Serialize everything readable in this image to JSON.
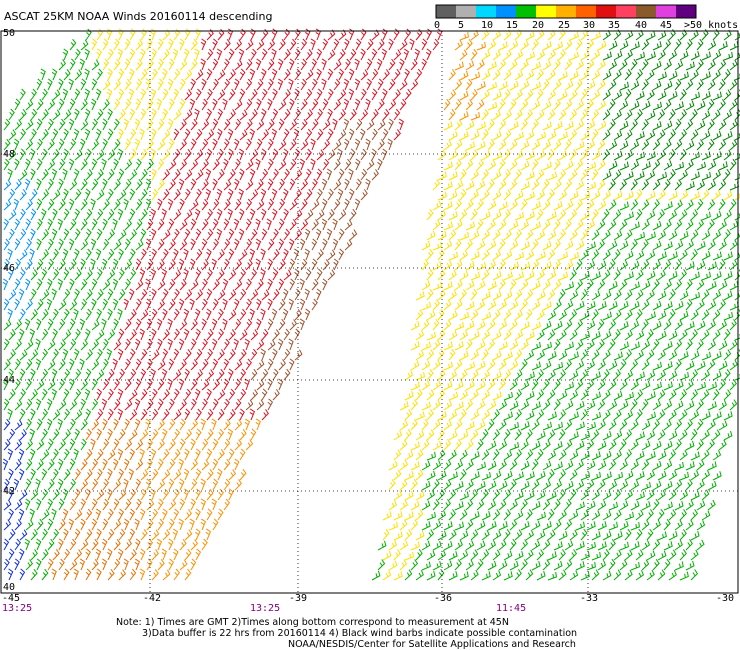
{
  "header": {
    "title": "ASCAT 25KM NOAA Winds 20160114 descending"
  },
  "legend": {
    "labels": [
      "0",
      "5",
      "10",
      "15",
      "20",
      "25",
      "30",
      "35",
      "40",
      "45",
      ">50 knots"
    ],
    "colors": [
      "#606060",
      "#b0b0b0",
      "#00d8ff",
      "#0090ff",
      "#00c000",
      "#ffff00",
      "#ffb000",
      "#ff6000",
      "#e01010",
      "#ff4060",
      "#8b5a2b",
      "#e040e0",
      "#600080"
    ]
  },
  "axes": {
    "lat_labels": [
      "50",
      "48",
      "46",
      "44",
      "42",
      "40"
    ],
    "lon_labels": [
      "-45",
      "-42",
      "-39",
      "-36",
      "-33",
      "-30"
    ],
    "time_labels": [
      "13:25",
      "13:25",
      "11:45"
    ]
  },
  "notes": {
    "line1": "Note: 1) Times are GMT 2)Times along bottom correspond to measurement at 45N",
    "line2": "3)Data buffer is 22 hrs from 20160114 4) Black wind barbs indicate possible contamination",
    "line3": "NOAA/NESDIS/Center for Satellite Applications and Research"
  }
}
